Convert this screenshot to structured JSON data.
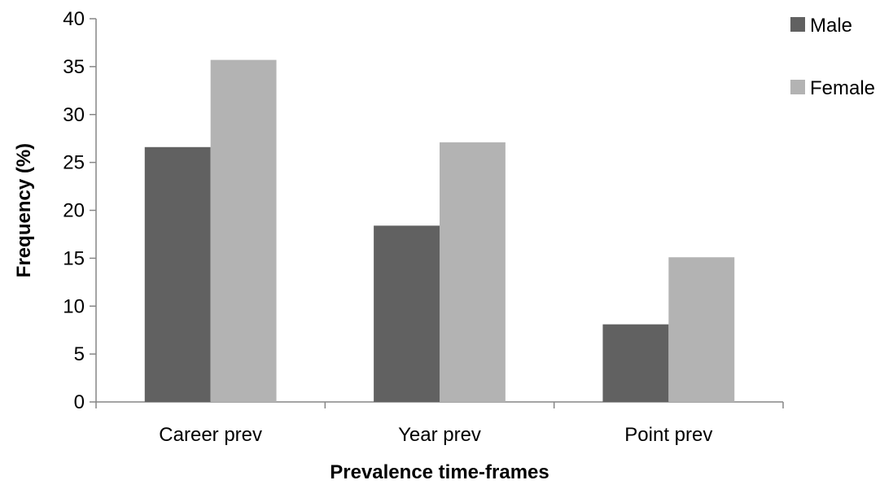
{
  "colors": {
    "male": "#616161",
    "female": "#b3b3b3",
    "axis": "#868686"
  },
  "chart_data": {
    "type": "bar",
    "title": "",
    "xlabel": "Prevalence time-frames",
    "ylabel": "Frequency (%)",
    "categories": [
      "Career prev",
      "Year prev",
      "Point prev"
    ],
    "series": [
      {
        "name": "Male",
        "values": [
          26.6,
          18.4,
          8.1
        ]
      },
      {
        "name": "Female",
        "values": [
          35.7,
          27.1,
          15.1
        ]
      }
    ],
    "ylim": [
      0,
      40
    ],
    "yticks": [
      "0",
      "5",
      "10",
      "15",
      "20",
      "25",
      "30",
      "35",
      "40"
    ],
    "grid": false,
    "legend_position": "top-right"
  }
}
